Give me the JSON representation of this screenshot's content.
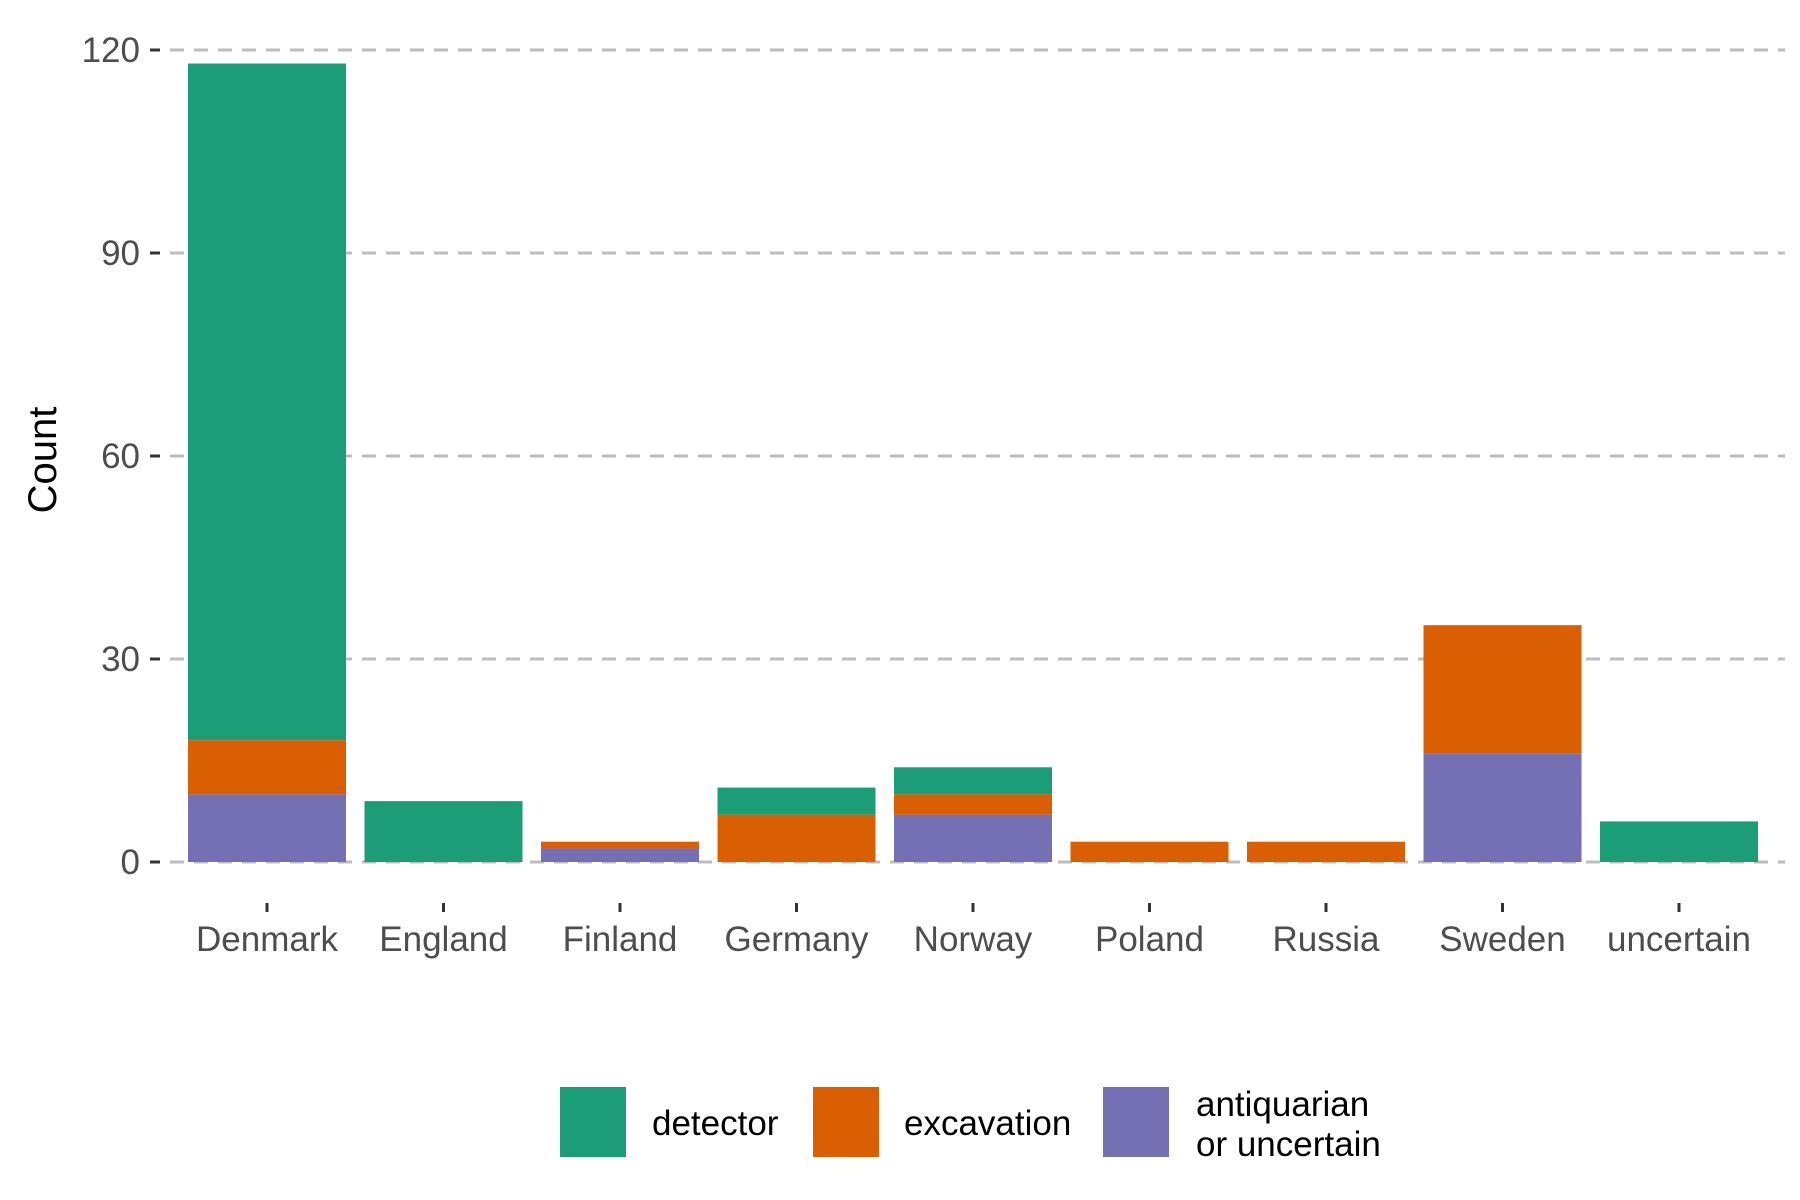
{
  "chart_data": {
    "type": "bar",
    "stacked": true,
    "title": "",
    "xlabel": "",
    "ylabel": "Count",
    "ylim": [
      0,
      120
    ],
    "yticks": [
      0,
      30,
      60,
      90,
      120
    ],
    "grid": "horizontal dashed",
    "legend_position": "bottom",
    "categories": [
      "Denmark",
      "England",
      "Finland",
      "Germany",
      "Norway",
      "Poland",
      "Russia",
      "Sweden",
      "uncertain"
    ],
    "series": [
      {
        "name": "antiquarian or uncertain",
        "legend_lines": [
          "antiquarian",
          "or uncertain"
        ],
        "color": "#7570B3",
        "values": [
          10,
          0,
          2,
          0,
          7,
          0,
          0,
          16,
          0
        ]
      },
      {
        "name": "excavation",
        "legend_lines": [
          "excavation"
        ],
        "color": "#D95F02",
        "values": [
          8,
          0,
          1,
          7,
          3,
          3,
          3,
          19,
          0
        ]
      },
      {
        "name": "detector",
        "legend_lines": [
          "detector"
        ],
        "color": "#1B9E77",
        "values": [
          100,
          9,
          0,
          4,
          4,
          0,
          0,
          0,
          6
        ]
      }
    ],
    "legend_order": [
      "detector",
      "excavation",
      "antiquarian or uncertain"
    ]
  }
}
